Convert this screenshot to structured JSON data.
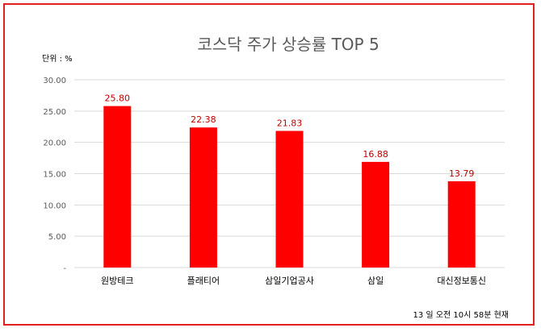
{
  "chart_data": {
    "type": "bar",
    "title": "코스닥 주가 상승률 TOP 5",
    "unit_label": "단위 : %",
    "categories": [
      "원방테크",
      "플래티어",
      "삼일기업공사",
      "삼일",
      "대신정보통신"
    ],
    "values": [
      25.8,
      22.38,
      21.83,
      16.88,
      13.79
    ],
    "data_labels": [
      "25.80",
      "22.38",
      "21.83",
      "16.88",
      "13.79"
    ],
    "ylim": [
      0,
      30
    ],
    "yticks": [
      {
        "value": 0,
        "label": "-"
      },
      {
        "value": 5,
        "label": "5.00"
      },
      {
        "value": 10,
        "label": "10.00"
      },
      {
        "value": 15,
        "label": "15.00"
      },
      {
        "value": 20,
        "label": "20.00"
      },
      {
        "value": 25,
        "label": "25.00"
      },
      {
        "value": 30,
        "label": "30.00"
      }
    ],
    "grid": true,
    "legend": "none",
    "footnote": "13 일 오전 10시 58분 현재",
    "colors": {
      "bar": "#ff0000",
      "data_label": "#c00000",
      "gridline": "#d9d9d9",
      "frame": "#e02020"
    }
  }
}
